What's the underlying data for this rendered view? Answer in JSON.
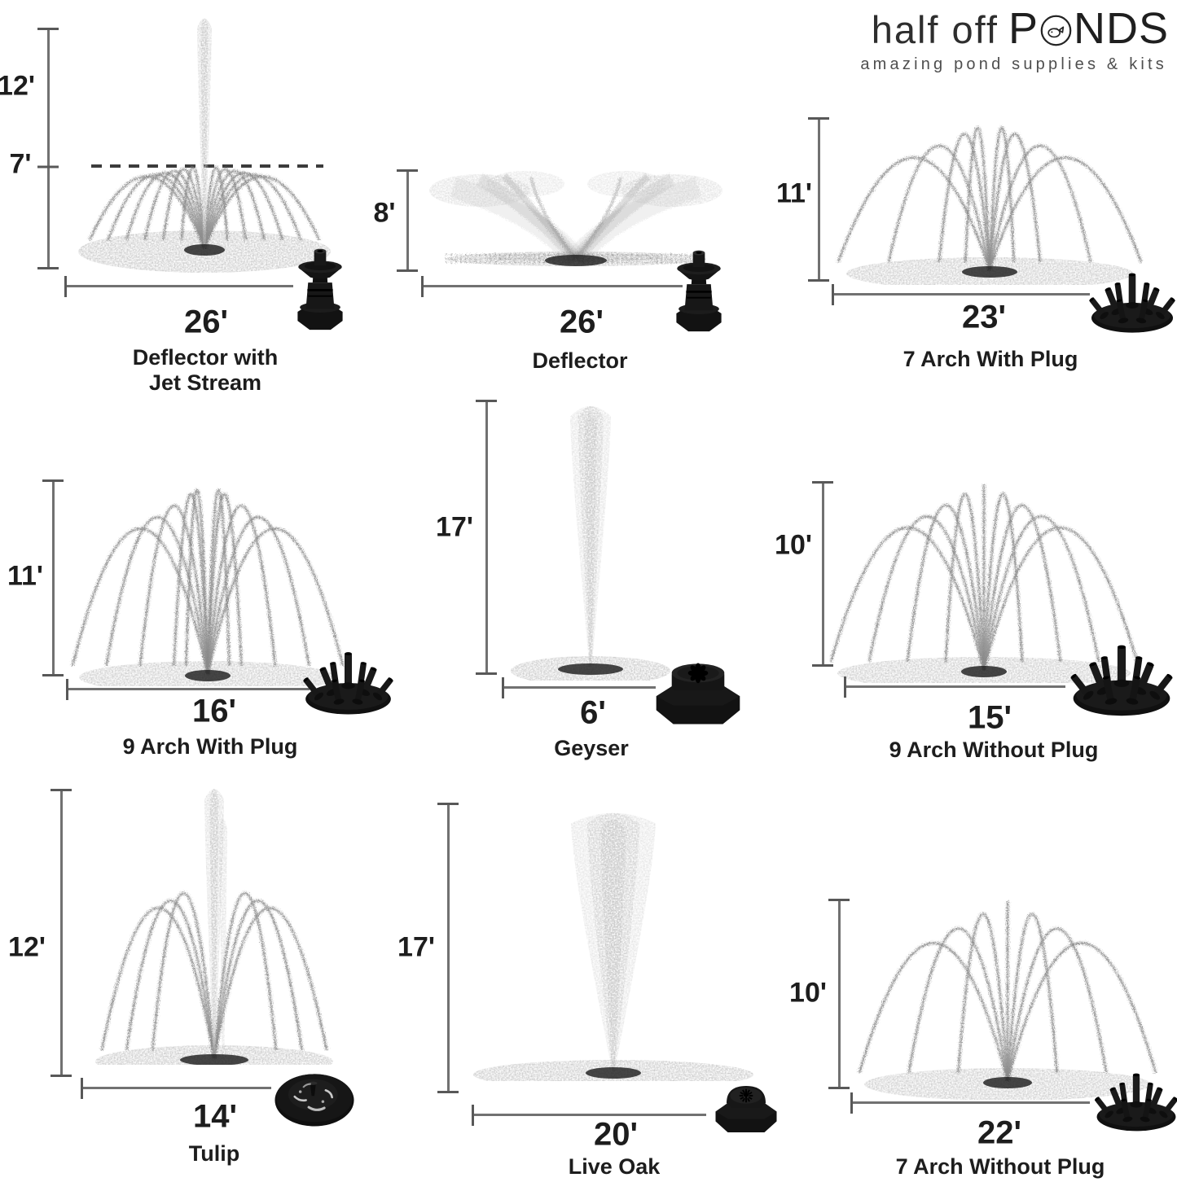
{
  "brand": {
    "name_light": "half off",
    "name_strong_pre": "P",
    "name_strong_post": "NDS",
    "logo_icon": "fish-in-letter-o",
    "tagline": "amazing pond supplies & kits"
  },
  "colors": {
    "text": "#1d1d1d",
    "dimension_line": "#717171",
    "spray_gray": "#8e8e8e",
    "nozzle_black": "#141414",
    "background": "#ffffff"
  },
  "cells": [
    {
      "name": "Deflector with Jet Stream",
      "name_lines": [
        "Deflector with",
        "Jet Stream"
      ],
      "width_label": "26'",
      "height_labels": [
        "12'",
        "7'"
      ],
      "fountain": {
        "type": "jet-flower"
      },
      "nozzle": "deflector"
    },
    {
      "name": "Deflector",
      "name_lines": [
        "Deflector"
      ],
      "width_label": "26'",
      "height_labels": [
        "8'"
      ],
      "fountain": {
        "type": "fan"
      },
      "nozzle": "deflector"
    },
    {
      "name": "7 Arch With Plug",
      "name_lines": [
        "7 Arch With Plug"
      ],
      "width_label": "23'",
      "height_labels": [
        "11'"
      ],
      "fountain": {
        "type": "arch",
        "arches": 7,
        "center_jet": false
      },
      "nozzle": "cluster"
    },
    {
      "name": "9 Arch With Plug",
      "name_lines": [
        "9 Arch With Plug"
      ],
      "width_label": "16'",
      "height_labels": [
        "11'"
      ],
      "fountain": {
        "type": "arch",
        "arches": 9,
        "center_jet": false
      },
      "nozzle": "cluster"
    },
    {
      "name": "Geyser",
      "name_lines": [
        "Geyser"
      ],
      "width_label": "6'",
      "height_labels": [
        "17'"
      ],
      "fountain": {
        "type": "column"
      },
      "nozzle": "geyser"
    },
    {
      "name": "9 Arch Without Plug",
      "name_lines": [
        "9 Arch Without Plug"
      ],
      "width_label": "15'",
      "height_labels": [
        "10'"
      ],
      "fountain": {
        "type": "arch",
        "arches": 9,
        "center_jet": true
      },
      "nozzle": "cluster"
    },
    {
      "name": "Tulip",
      "name_lines": [
        "Tulip"
      ],
      "width_label": "14'",
      "height_labels": [
        "12'"
      ],
      "fountain": {
        "type": "tulip"
      },
      "nozzle": "tulip"
    },
    {
      "name": "Live Oak",
      "name_lines": [
        "Live Oak"
      ],
      "width_label": "20'",
      "height_labels": [
        "17'"
      ],
      "fountain": {
        "type": "column"
      },
      "nozzle": "liveoak"
    },
    {
      "name": "7 Arch Without Plug",
      "name_lines": [
        "7 Arch Without Plug"
      ],
      "width_label": "22'",
      "height_labels": [
        "10'"
      ],
      "fountain": {
        "type": "arch",
        "arches": 7,
        "center_jet": true
      },
      "nozzle": "cluster"
    }
  ]
}
